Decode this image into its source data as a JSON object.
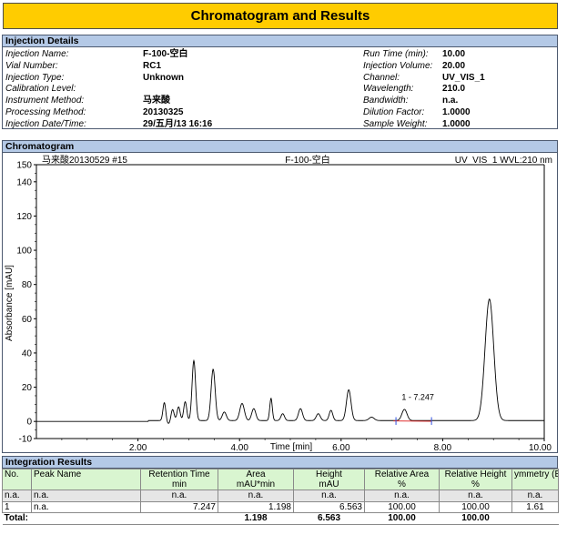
{
  "report_title": "Chromatogram and Results",
  "injection_details": {
    "header": "Injection Details",
    "left": [
      {
        "label": "Injection Name:",
        "value": "F-100-空白"
      },
      {
        "label": "Vial Number:",
        "value": "RC1"
      },
      {
        "label": "Injection Type:",
        "value": "Unknown"
      },
      {
        "label": "Calibration Level:",
        "value": ""
      },
      {
        "label": "Instrument Method:",
        "value": "马来酸"
      },
      {
        "label": "Processing Method:",
        "value": "20130325"
      },
      {
        "label": "Injection Date/Time:",
        "value": "29/五月/13 16:16"
      }
    ],
    "right": [
      {
        "label": "Run Time (min):",
        "value": "10.00"
      },
      {
        "label": "Injection Volume:",
        "value": "20.00"
      },
      {
        "label": "Channel:",
        "value": "UV_VIS_1"
      },
      {
        "label": "Wavelength:",
        "value": "210.0"
      },
      {
        "label": "Bandwidth:",
        "value": "n.a."
      },
      {
        "label": "Dilution Factor:",
        "value": "1.0000"
      },
      {
        "label": "Sample Weight:",
        "value": "1.0000"
      }
    ]
  },
  "chromatogram_header": "Chromatogram",
  "chart_data": {
    "type": "line",
    "title_left": "马来酸20130529 #15",
    "title_center": "F-100-空白",
    "title_right": "UV_VIS_1 WVL:210 nm",
    "xlabel": "Time [min]",
    "ylabel": "Absorbance [mAU]",
    "xlim": [
      0,
      10
    ],
    "ylim": [
      -10,
      150
    ],
    "x_ticks": [
      "2.00",
      "4.00",
      "6.00",
      "8.00",
      "10.00"
    ],
    "x_tick_values": [
      2,
      4,
      6,
      8,
      10
    ],
    "y_ticks": [
      "150",
      "140",
      "120",
      "100",
      "80",
      "60",
      "40",
      "20",
      "0",
      "-10"
    ],
    "y_tick_values": [
      150,
      140,
      120,
      100,
      80,
      60,
      40,
      20,
      0,
      -10
    ],
    "peak_annotation": {
      "label": "1 - 7.247",
      "x": 7.247,
      "y": 6.563
    },
    "baseline": 0.0,
    "peaks": [
      {
        "rt": 2.52,
        "height": 11,
        "width": 0.028
      },
      {
        "rt": 2.68,
        "height": 7,
        "width": 0.03
      },
      {
        "rt": 2.8,
        "height": 8,
        "width": 0.03
      },
      {
        "rt": 2.93,
        "height": 11,
        "width": 0.03
      },
      {
        "rt": 3.1,
        "height": 35,
        "width": 0.035
      },
      {
        "rt": 3.48,
        "height": 30,
        "width": 0.04
      },
      {
        "rt": 3.7,
        "height": 5,
        "width": 0.04
      },
      {
        "rt": 4.05,
        "height": 10,
        "width": 0.045
      },
      {
        "rt": 4.28,
        "height": 7,
        "width": 0.04
      },
      {
        "rt": 4.62,
        "height": 13,
        "width": 0.025
      },
      {
        "rt": 4.85,
        "height": 4,
        "width": 0.035
      },
      {
        "rt": 5.2,
        "height": 7,
        "width": 0.04
      },
      {
        "rt": 5.55,
        "height": 4,
        "width": 0.04
      },
      {
        "rt": 5.8,
        "height": 6,
        "width": 0.035
      },
      {
        "rt": 6.15,
        "height": 18,
        "width": 0.045
      },
      {
        "rt": 6.6,
        "height": 2,
        "width": 0.05
      },
      {
        "rt": 7.247,
        "height": 6.563,
        "width": 0.05
      },
      {
        "rt": 8.92,
        "height": 71,
        "width": 0.085
      }
    ]
  },
  "integration": {
    "header": "Integration Results",
    "columns": [
      {
        "line1": "No.",
        "line2": ""
      },
      {
        "line1": "Peak Name",
        "line2": ""
      },
      {
        "line1": "Retention Time",
        "line2": "min"
      },
      {
        "line1": "Area",
        "line2": "mAU*min"
      },
      {
        "line1": "Height",
        "line2": "mAU"
      },
      {
        "line1": "Relative Area",
        "line2": "%"
      },
      {
        "line1": "Relative Height",
        "line2": "%"
      },
      {
        "line1": "ymmetry (E",
        "line2": ""
      }
    ],
    "rows": [
      {
        "no": "n.a.",
        "name": "n.a.",
        "rt": "n.a.",
        "area": "n.a.",
        "height": "n.a.",
        "rel_area": "n.a.",
        "rel_height": "n.a.",
        "asym": "n.a."
      },
      {
        "no": "1",
        "name": "n.a.",
        "rt": "7.247",
        "area": "1.198",
        "height": "6.563",
        "rel_area": "100.00",
        "rel_height": "100.00",
        "asym": "1.61"
      }
    ],
    "total": {
      "label": "Total:",
      "area": "1.198",
      "height": "6.563",
      "rel_area": "100.00",
      "rel_height": "100.00"
    }
  }
}
